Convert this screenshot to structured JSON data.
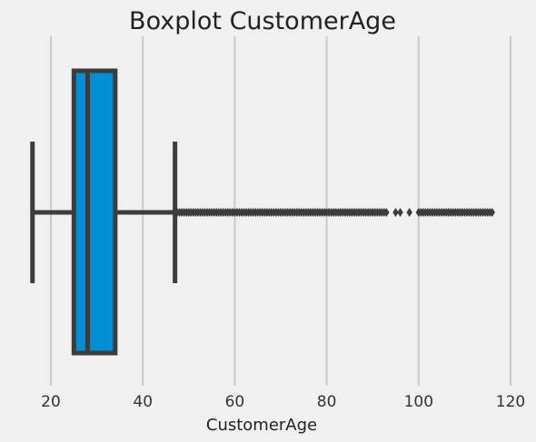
{
  "chart_data": {
    "type": "boxplot",
    "orientation": "horizontal",
    "title": "Boxplot CustomerAge",
    "xlabel": "CustomerAge",
    "ylabel": "",
    "xlim": [
      13,
      124
    ],
    "x_ticks": [
      20,
      40,
      60,
      80,
      100,
      120
    ],
    "grid": "vertical",
    "colors": {
      "background": "#f0f0f0",
      "box_fill": "#008fd5",
      "line": "#3c3c3c",
      "grid": "#cbcbcb"
    },
    "box": {
      "whisker_low": 16,
      "q1": 25,
      "median": 28,
      "q3": 34,
      "whisker_high": 47
    },
    "outlier_ranges": [
      [
        47.5,
        93
      ],
      [
        100,
        116
      ]
    ],
    "outliers_individual": [
      95,
      96,
      98
    ],
    "outlier_step": 0.5
  }
}
